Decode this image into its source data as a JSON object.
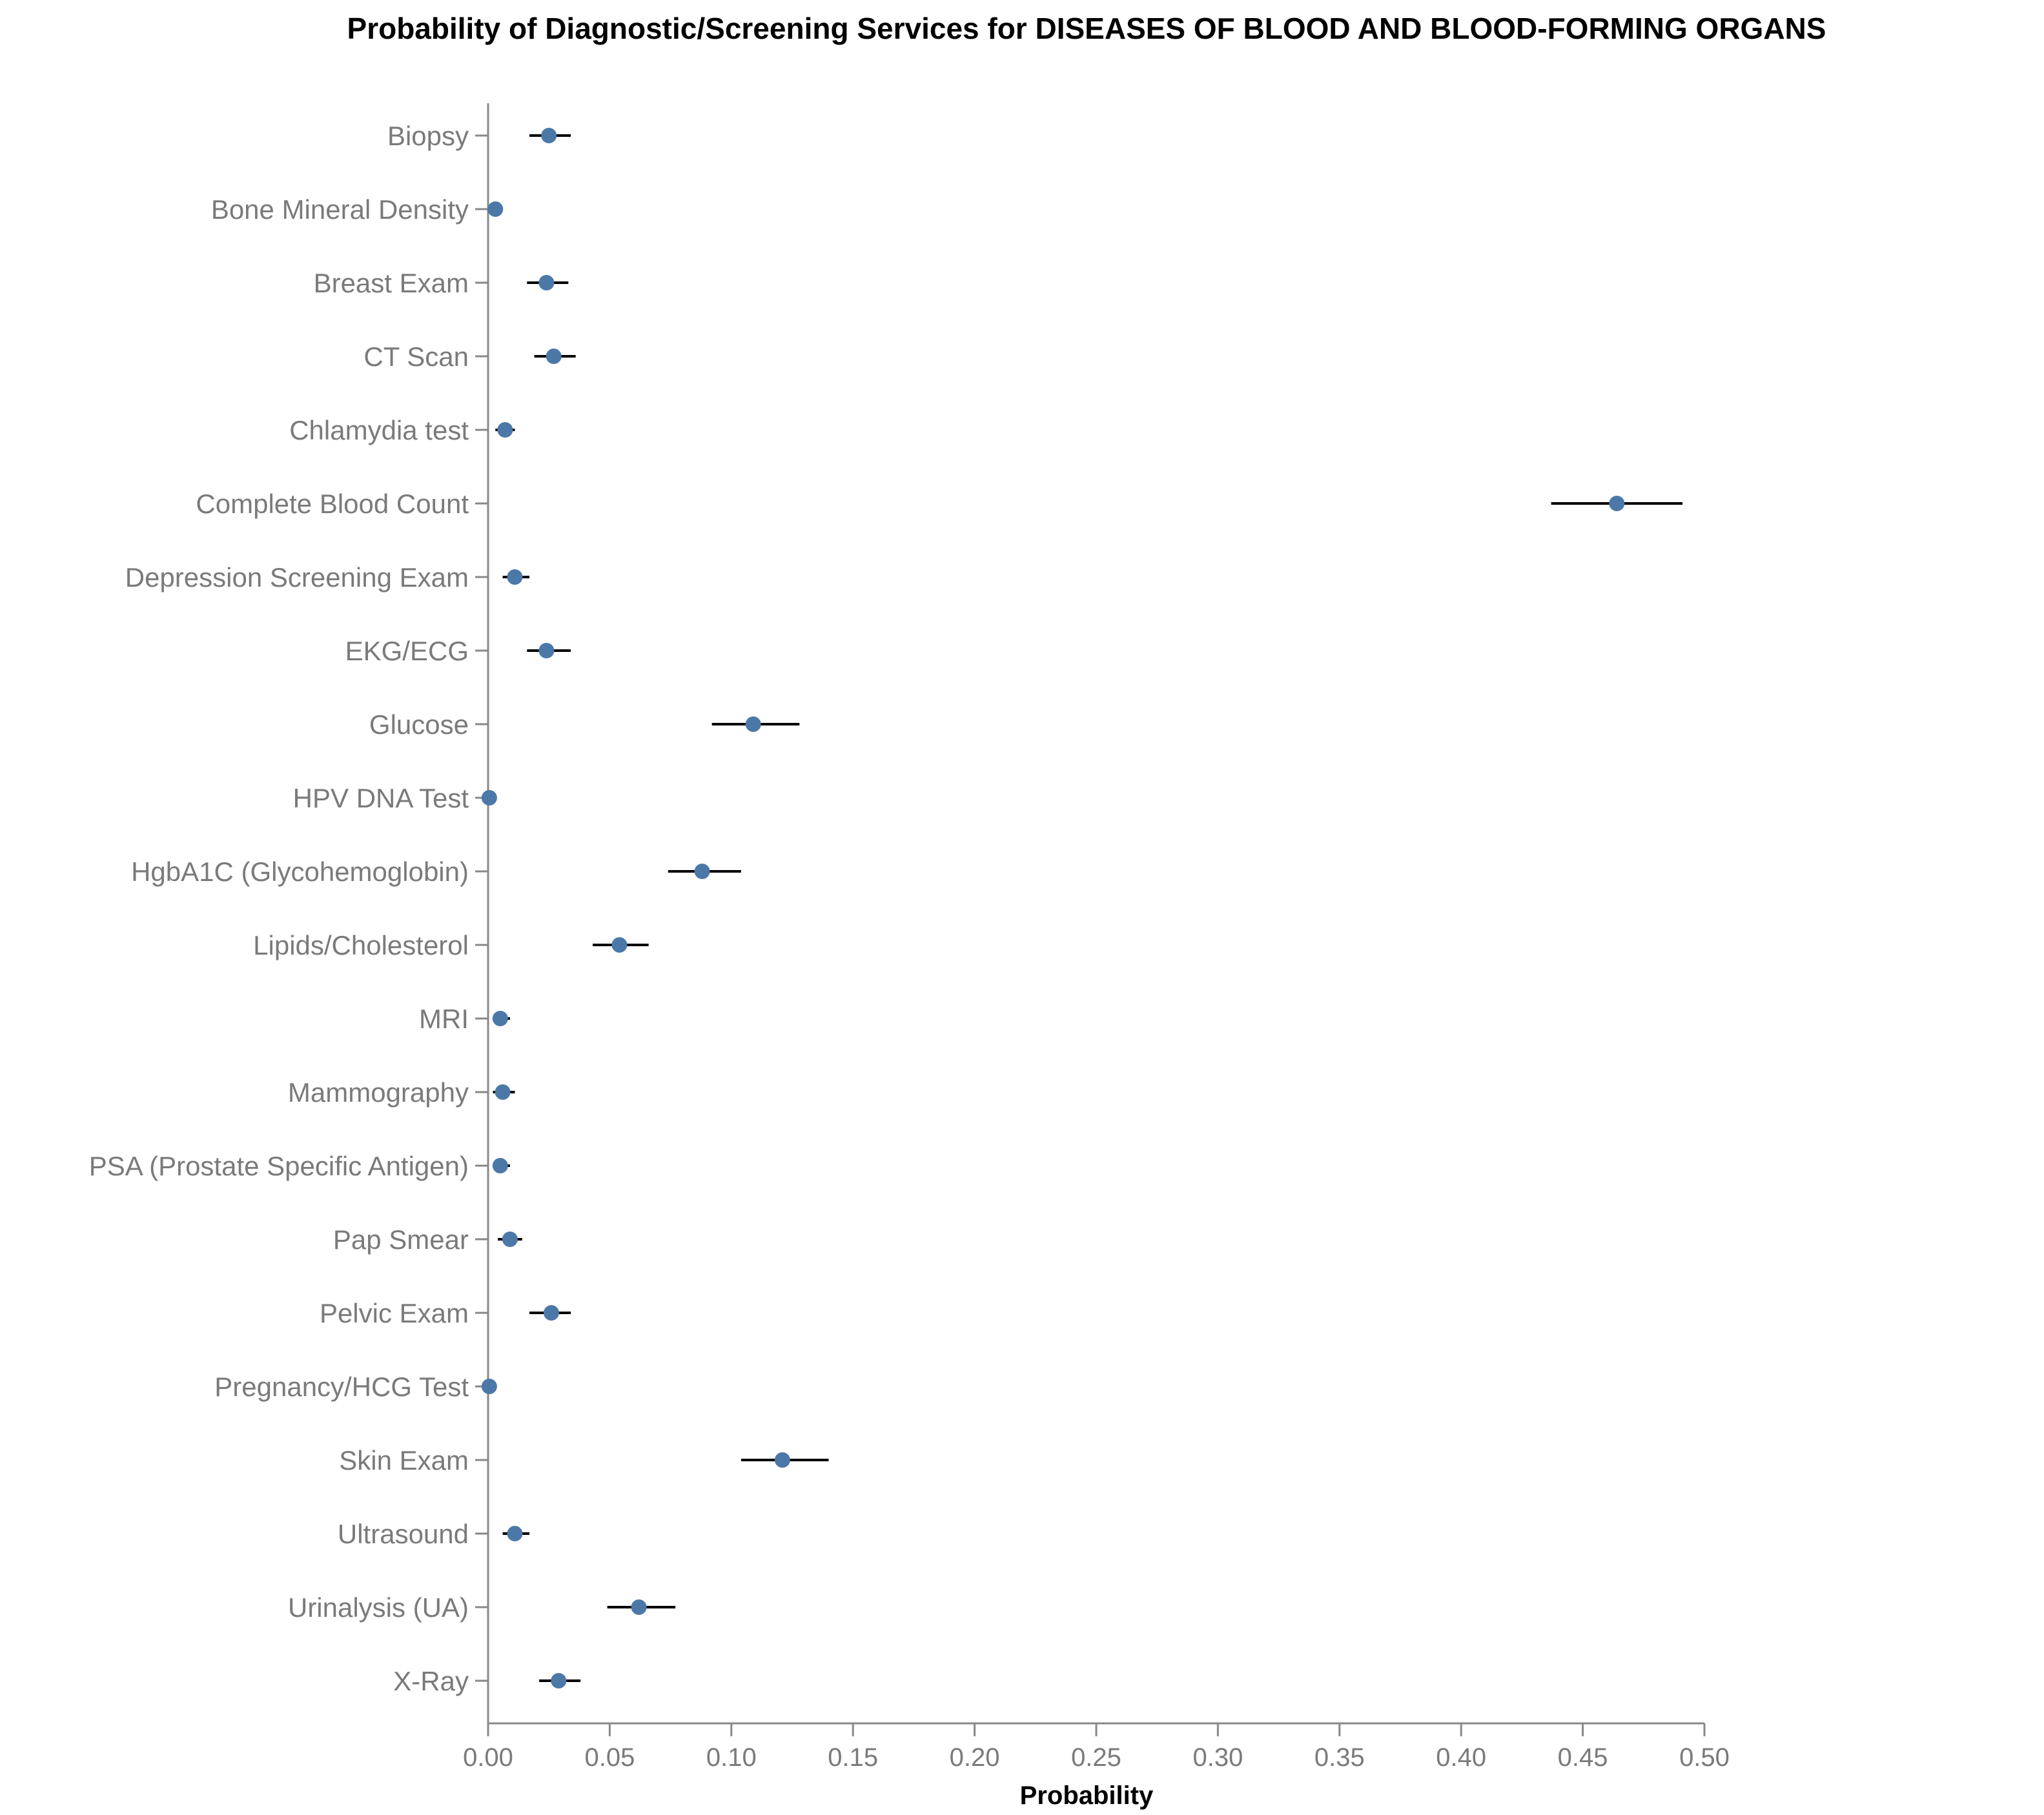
{
  "chart_data": {
    "type": "scatter",
    "title": "Probability of Diagnostic/Screening Services for DISEASES OF BLOOD AND BLOOD-FORMING ORGANS",
    "xlabel": "Probability",
    "ylabel": "",
    "xlim": [
      0,
      0.5
    ],
    "x_ticks": [
      "0.00",
      "0.05",
      "0.10",
      "0.15",
      "0.20",
      "0.25",
      "0.30",
      "0.35",
      "0.40",
      "0.45",
      "0.50"
    ],
    "x_tick_values": [
      0,
      0.05,
      0.1,
      0.15,
      0.2,
      0.25,
      0.3,
      0.35,
      0.4,
      0.45,
      0.5
    ],
    "grid": false,
    "point_color": "#4c78a8",
    "error_bar_color": "#000000",
    "categories": [
      "Biopsy",
      "Bone Mineral Density",
      "Breast Exam",
      "CT Scan",
      "Chlamydia test",
      "Complete Blood Count",
      "Depression Screening Exam",
      "EKG/ECG",
      "Glucose",
      "HPV DNA Test",
      "HgbA1C (Glycohemoglobin)",
      "Lipids/Cholesterol",
      "MRI",
      "Mammography",
      "PSA (Prostate Specific Antigen)",
      "Pap Smear",
      "Pelvic Exam",
      "Pregnancy/HCG Test",
      "Skin Exam",
      "Ultrasound",
      "Urinalysis (UA)",
      "X-Ray"
    ],
    "values": [
      0.025,
      0.003,
      0.024,
      0.027,
      0.007,
      0.464,
      0.011,
      0.024,
      0.109,
      0.0005,
      0.088,
      0.054,
      0.005,
      0.006,
      0.005,
      0.009,
      0.026,
      0.0005,
      0.121,
      0.011,
      0.062,
      0.029
    ],
    "ci_low": [
      0.017,
      0.0,
      0.016,
      0.019,
      0.003,
      0.437,
      0.006,
      0.016,
      0.092,
      0.0,
      0.074,
      0.043,
      0.002,
      0.002,
      0.002,
      0.004,
      0.017,
      0.0,
      0.104,
      0.006,
      0.049,
      0.021
    ],
    "ci_high": [
      0.034,
      0.006,
      0.033,
      0.036,
      0.011,
      0.491,
      0.017,
      0.034,
      0.128,
      0.001,
      0.104,
      0.066,
      0.009,
      0.011,
      0.009,
      0.014,
      0.034,
      0.001,
      0.14,
      0.017,
      0.077,
      0.038
    ]
  }
}
